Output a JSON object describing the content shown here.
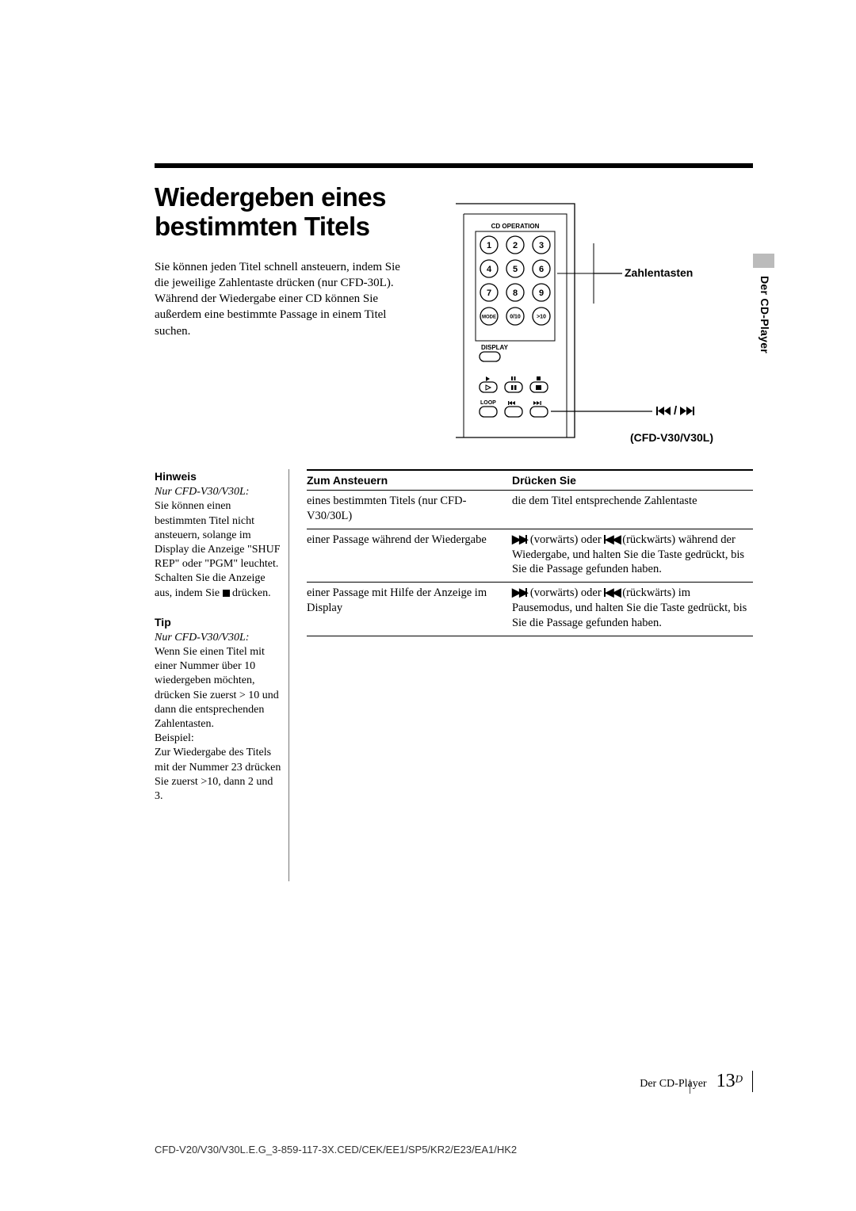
{
  "title": "Wiedergeben eines bestimmten Titels",
  "intro": "Sie können jeden Titel schnell ansteuern, indem Sie die jeweilige Zahlentaste drücken (nur CFD-30L). Während der Wiedergabe einer CD können Sie außerdem eine bestimmte Passage in einem Titel suchen.",
  "sideTab": "Der CD-Player",
  "diagram": {
    "topLabel": "CD OPERATION",
    "brLabel": "(CFD-V30/V30L)",
    "labels": {
      "numPad": "Zahlentasten",
      "skipIcon": "⏮/⏭"
    },
    "buttons": {
      "row1": [
        "1",
        "2",
        "3"
      ],
      "row2": [
        "4",
        "5",
        "6"
      ],
      "row3": [
        "7",
        "8",
        "9"
      ],
      "row4": [
        "MODE",
        "0/10",
        ">10"
      ],
      "display": "DISPLAY",
      "loop": "LOOP"
    }
  },
  "notes": {
    "hinweis": {
      "h": "Hinweis",
      "em": "Nur CFD-V30/V30L:",
      "body": "Sie können einen bestimmten Titel nicht ansteuern, solange im Display die Anzeige \"SHUF REP\" oder \"PGM\" leuchtet. Schalten Sie die Anzeige aus, indem Sie ",
      "tail": " drücken."
    },
    "tip": {
      "h": "Tip",
      "em": "Nur CFD-V30/V30L:",
      "body1": "Wenn Sie einen Titel mit einer Nummer über 10 wiedergeben möchten, drücken Sie zuerst > 10 und dann die entsprechenden Zahlentasten.",
      "body2": "Beispiel:",
      "body3": "Zur Wiedergabe des Titels mit der Nummer 23 drücken Sie zuerst >10, dann 2 und 3."
    }
  },
  "table": {
    "h1": "Zum Ansteuern",
    "h2": "Drücken Sie",
    "rows": [
      {
        "c1": "eines bestimmten Titels (nur CFD-V30/30L)",
        "c2": "die dem Titel entsprechende Zahlentaste"
      },
      {
        "c1": "einer Passage während der Wiedergabe",
        "c2_pre": "",
        "c2_icons": true,
        "c2_post": " (rückwärts) während der Wiedergabe, und halten Sie die Taste gedrückt, bis Sie die Passage gefunden haben."
      },
      {
        "c1": "einer Passage mit Hilfe der Anzeige im Display",
        "c2_pre": "",
        "c2_icons": true,
        "c2_post": " (rückwärts) im Pausemodus, und halten Sie die Taste gedrückt, bis Sie die Passage gefunden haben."
      }
    ]
  },
  "footer": {
    "label": "Der CD-Player",
    "page": "13",
    "sup": "D"
  },
  "bottomCode": "CFD-V20/V30/V30L.E.G_3-859-117-3X.CED/CEK/EE1/SP5/KR2/E23/EA1/HK2"
}
